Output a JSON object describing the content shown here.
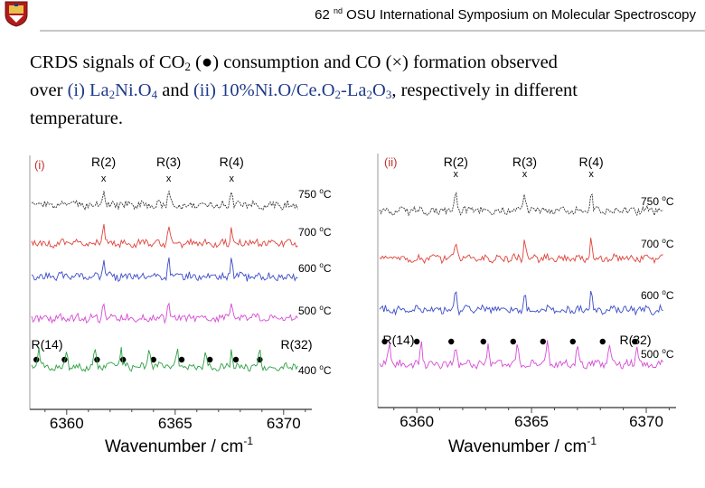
{
  "header": {
    "ordinal_number": "62",
    "ordinal_suffix": "nd",
    "title_rest": "OSU International Symposium on Molecular Spectroscopy",
    "logo": "university-crest"
  },
  "description": {
    "t1": "CRDS signals of CO",
    "t1_sub": "2",
    "t2": " (",
    "dot_symbol": "●",
    "t3": ") consumption and CO (",
    "cross_symbol": "×",
    "t4": ") formation observed",
    "t5": "over ",
    "t6": "(i) La",
    "t6_sub": "2",
    "t7": "Ni.O",
    "t7_sub": "4",
    "t8": " and ",
    "t9": "(ii) 10%Ni.O/Ce.O",
    "t9_sub": "2",
    "t10": "-La",
    "t10_sub": "2",
    "t11": "O",
    "t11_sub": "3",
    "t12": ", respectively in different",
    "t13": "temperature."
  },
  "chart_data": [
    {
      "type": "line",
      "panel_label": "(i)",
      "xlabel": "Wavenumber / cm",
      "xlabel_sup": "-1",
      "xlim": [
        6358.3,
        6371.3
      ],
      "x_ticks": [
        "6360",
        "6365",
        "6370"
      ],
      "line_labels": [
        {
          "id": "R(2)",
          "x": 6361.7,
          "marker": "x"
        },
        {
          "id": "R(3)",
          "x": 6364.7,
          "marker": "x"
        },
        {
          "id": "R(4)",
          "x": 6367.6,
          "marker": "x"
        },
        {
          "id": "R(14)",
          "x": 6358.7,
          "marker": ""
        },
        {
          "id": "R(32)",
          "x": 6369.1,
          "marker": ""
        }
      ],
      "series": [
        {
          "name": "750 °C",
          "temp": "750",
          "unit": "C",
          "color": "#333333",
          "peaks": [
            6361.7,
            6364.7,
            6367.6
          ]
        },
        {
          "name": "700 °C",
          "temp": "700",
          "unit": "C",
          "color": "#e0433a",
          "peaks": [
            6361.7,
            6364.7,
            6367.6
          ]
        },
        {
          "name": "600 °C",
          "temp": "600",
          "unit": "C",
          "color": "#3b4cc8",
          "peaks": [
            6361.7,
            6364.7,
            6367.6
          ]
        },
        {
          "name": "500 °C",
          "temp": "500",
          "unit": "C",
          "color": "#d64bd6",
          "peaks": [
            6361.7,
            6364.7,
            6367.6
          ]
        },
        {
          "name": "400 °C",
          "temp": "400",
          "unit": "C",
          "color": "#2ea043",
          "peaks": [
            6358.7,
            6360.0,
            6361.3,
            6362.5,
            6363.8,
            6365.1,
            6366.4,
            6367.6,
            6368.9
          ]
        }
      ],
      "co2_dots": [
        6358.6,
        6359.9,
        6361.4,
        6362.6,
        6364.0,
        6365.3,
        6366.6,
        6367.8,
        6368.9
      ]
    },
    {
      "type": "line",
      "panel_label": "(ii)",
      "xlabel": "Wavenumber / cm",
      "xlabel_sup": "-1",
      "xlim": [
        6358.3,
        6371.3
      ],
      "x_ticks": [
        "6360",
        "6365",
        "6370"
      ],
      "line_labels": [
        {
          "id": "R(2)",
          "x": 6361.7,
          "marker": "x"
        },
        {
          "id": "R(3)",
          "x": 6364.7,
          "marker": "x"
        },
        {
          "id": "R(4)",
          "x": 6367.6,
          "marker": "x"
        },
        {
          "id": "R(14)",
          "x": 6358.6,
          "marker": ""
        },
        {
          "id": "R(32)",
          "x": 6369.6,
          "marker": ""
        }
      ],
      "series": [
        {
          "name": "750 °C",
          "temp": "750",
          "unit": "C",
          "color": "#333333",
          "peaks": [
            6361.7,
            6364.7,
            6367.6
          ]
        },
        {
          "name": "700 °C",
          "temp": "700",
          "unit": "C",
          "color": "#e0433a",
          "peaks": [
            6361.7,
            6364.7,
            6367.6
          ]
        },
        {
          "name": "600 °C",
          "temp": "600",
          "unit": "C",
          "color": "#3b4cc8",
          "peaks": [
            6361.7,
            6364.7,
            6367.6
          ]
        },
        {
          "name": "500 °C",
          "temp": "500",
          "unit": "C",
          "color": "#d64bd6",
          "peaks": [
            6358.8,
            6360.2,
            6361.7,
            6363.1,
            6364.4,
            6365.7,
            6367.0,
            6368.4,
            6369.6
          ]
        }
      ],
      "co2_dots": [
        6358.6,
        6360.0,
        6361.5,
        6362.9,
        6364.2,
        6365.5,
        6366.8,
        6368.1,
        6369.5
      ]
    }
  ]
}
